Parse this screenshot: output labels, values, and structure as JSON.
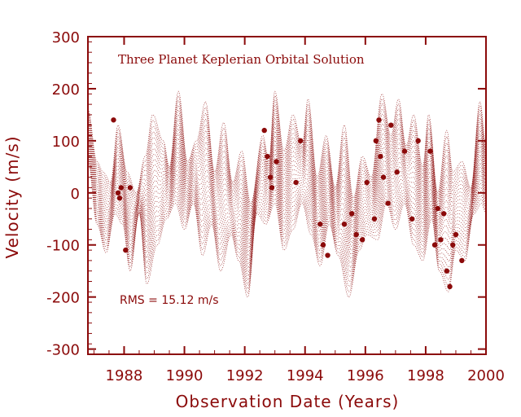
{
  "chart_data": {
    "type": "scatter",
    "title": "Three Planet Keplerian Orbital Solution",
    "annotation": "RMS = 15.12 m/s",
    "xlabel": "Observation Date (Years)",
    "ylabel": "Velocity  (m/s)",
    "xlim": [
      1986.8,
      2000
    ],
    "ylim": [
      -310,
      300
    ],
    "x_ticks": [
      1988,
      1990,
      1992,
      1994,
      1996,
      1998,
      2000
    ],
    "y_ticks": [
      -300,
      -200,
      -100,
      0,
      100,
      200,
      300
    ],
    "grid": false,
    "color": "#8b0a0a",
    "model_band": {
      "x_start": 1986.8,
      "x_end": 2000.0,
      "period_years": 0.63,
      "description_values": "dense dotted model curve envelope",
      "upper": [
        [
          1986.8,
          160
        ],
        [
          1987.1,
          60
        ],
        [
          1987.3,
          40
        ],
        [
          1987.55,
          20
        ],
        [
          1987.8,
          130
        ],
        [
          1988.1,
          40
        ],
        [
          1988.4,
          0
        ],
        [
          1988.7,
          70
        ],
        [
          1988.95,
          150
        ],
        [
          1989.3,
          100
        ],
        [
          1989.5,
          50
        ],
        [
          1989.8,
          195
        ],
        [
          1990.1,
          60
        ],
        [
          1990.4,
          100
        ],
        [
          1990.7,
          175
        ],
        [
          1991.0,
          40
        ],
        [
          1991.3,
          135
        ],
        [
          1991.6,
          20
        ],
        [
          1991.9,
          80
        ],
        [
          1992.2,
          -20
        ],
        [
          1992.6,
          110
        ],
        [
          1992.8,
          60
        ],
        [
          1993.0,
          195
        ],
        [
          1993.3,
          80
        ],
        [
          1993.6,
          150
        ],
        [
          1993.9,
          90
        ],
        [
          1994.1,
          180
        ],
        [
          1994.4,
          30
        ],
        [
          1994.7,
          110
        ],
        [
          1995.0,
          10
        ],
        [
          1995.3,
          130
        ],
        [
          1995.6,
          -10
        ],
        [
          1995.9,
          70
        ],
        [
          1996.2,
          30
        ],
        [
          1996.55,
          190
        ],
        [
          1996.85,
          110
        ],
        [
          1997.1,
          180
        ],
        [
          1997.35,
          90
        ],
        [
          1997.6,
          150
        ],
        [
          1997.9,
          50
        ],
        [
          1998.1,
          150
        ],
        [
          1998.4,
          0
        ],
        [
          1998.7,
          120
        ],
        [
          1998.9,
          40
        ],
        [
          1999.2,
          60
        ],
        [
          1999.5,
          10
        ],
        [
          1999.8,
          175
        ],
        [
          2000.0,
          90
        ]
      ],
      "lower": [
        [
          1986.8,
          60
        ],
        [
          1987.1,
          -60
        ],
        [
          1987.4,
          -115
        ],
        [
          1987.7,
          -40
        ],
        [
          1987.95,
          -60
        ],
        [
          1988.2,
          -150
        ],
        [
          1988.5,
          -40
        ],
        [
          1988.75,
          -175
        ],
        [
          1989.1,
          -100
        ],
        [
          1989.4,
          -50
        ],
        [
          1989.7,
          -20
        ],
        [
          1990.0,
          -70
        ],
        [
          1990.3,
          -20
        ],
        [
          1990.6,
          -120
        ],
        [
          1990.9,
          -60
        ],
        [
          1991.2,
          -150
        ],
        [
          1991.55,
          -80
        ],
        [
          1991.8,
          -130
        ],
        [
          1992.1,
          -200
        ],
        [
          1992.4,
          -40
        ],
        [
          1992.7,
          -60
        ],
        [
          1993.0,
          -20
        ],
        [
          1993.3,
          -110
        ],
        [
          1993.6,
          -70
        ],
        [
          1993.9,
          -20
        ],
        [
          1994.2,
          -80
        ],
        [
          1994.5,
          -140
        ],
        [
          1994.8,
          -60
        ],
        [
          1995.1,
          -120
        ],
        [
          1995.45,
          -200
        ],
        [
          1995.8,
          -110
        ],
        [
          1996.05,
          -80
        ],
        [
          1996.4,
          -90
        ],
        [
          1996.7,
          -20
        ],
        [
          1997.0,
          -70
        ],
        [
          1997.3,
          -20
        ],
        [
          1997.6,
          -100
        ],
        [
          1997.9,
          -130
        ],
        [
          1998.2,
          -50
        ],
        [
          1998.45,
          -150
        ],
        [
          1998.75,
          -190
        ],
        [
          1999.0,
          -110
        ],
        [
          1999.3,
          -130
        ],
        [
          1999.6,
          -40
        ],
        [
          1999.85,
          -20
        ],
        [
          2000.0,
          -40
        ]
      ]
    },
    "series": [
      {
        "type": "scatter",
        "x": [
          1987.65,
          1987.8,
          1987.85,
          1987.9,
          1988.05,
          1988.2,
          1992.65,
          1992.75,
          1992.85,
          1992.9,
          1993.05,
          1993.7,
          1993.85,
          1994.5,
          1994.6,
          1994.75,
          1995.3,
          1995.55,
          1995.7,
          1995.9,
          1996.05,
          1996.3,
          1996.35,
          1996.45,
          1996.5,
          1996.6,
          1996.75,
          1996.85,
          1997.05,
          1997.3,
          1997.55,
          1997.75,
          1998.15,
          1998.3,
          1998.4,
          1998.5,
          1998.6,
          1998.7,
          1998.8,
          1998.9,
          1999.0,
          1999.2
        ],
        "y": [
          140,
          0,
          -10,
          10,
          -110,
          10,
          120,
          70,
          30,
          10,
          60,
          20,
          100,
          -60,
          -100,
          -120,
          -60,
          -40,
          -80,
          -90,
          20,
          -50,
          100,
          140,
          70,
          30,
          -20,
          130,
          40,
          80,
          -50,
          100,
          80,
          -100,
          -30,
          -90,
          -40,
          -150,
          -180,
          -100,
          -80,
          -130
        ]
      }
    ]
  }
}
